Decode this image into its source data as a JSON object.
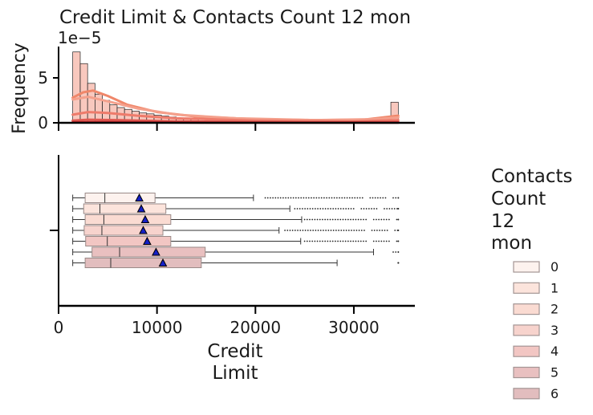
{
  "chart_data": {
    "type": "histogram+boxplot",
    "title": "Credit Limit & Contacts Count 12 mon",
    "histogram": {
      "ylabel": "Frequency",
      "y_scale_label": "1e−5",
      "y_ticks": [
        "0",
        "5"
      ],
      "ylim": [
        0,
        8.5
      ],
      "bins": [
        {
          "x0": 1438,
          "x1": 2200,
          "y": 7.9
        },
        {
          "x0": 2200,
          "x1": 2950,
          "y": 6.6
        },
        {
          "x0": 2950,
          "x1": 3700,
          "y": 4.4
        },
        {
          "x0": 3700,
          "x1": 4450,
          "y": 3.2
        },
        {
          "x0": 4450,
          "x1": 5200,
          "y": 2.5
        },
        {
          "x0": 5200,
          "x1": 5950,
          "y": 2.0
        },
        {
          "x0": 5950,
          "x1": 6700,
          "y": 1.7
        },
        {
          "x0": 6700,
          "x1": 7450,
          "y": 1.5
        },
        {
          "x0": 7450,
          "x1": 8200,
          "y": 1.3
        },
        {
          "x0": 8200,
          "x1": 8950,
          "y": 1.1
        },
        {
          "x0": 8950,
          "x1": 9700,
          "y": 1.0
        },
        {
          "x0": 9700,
          "x1": 10450,
          "y": 0.85
        },
        {
          "x0": 10450,
          "x1": 11200,
          "y": 0.75
        },
        {
          "x0": 11200,
          "x1": 11950,
          "y": 0.65
        },
        {
          "x0": 11950,
          "x1": 12700,
          "y": 0.55
        },
        {
          "x0": 12700,
          "x1": 13450,
          "y": 0.5
        },
        {
          "x0": 13450,
          "x1": 14200,
          "y": 0.45
        },
        {
          "x0": 33760,
          "x1": 34516,
          "y": 2.3
        }
      ],
      "kde_curves": [
        {
          "color": "#f0876a",
          "points": [
            [
              1438,
              2.8
            ],
            [
              2500,
              3.4
            ],
            [
              3500,
              3.6
            ],
            [
              5000,
              3.0
            ],
            [
              7000,
              2.0
            ],
            [
              10000,
              1.2
            ],
            [
              14000,
              0.7
            ],
            [
              20000,
              0.4
            ],
            [
              26000,
              0.3
            ],
            [
              31000,
              0.35
            ],
            [
              33000,
              0.6
            ],
            [
              34516,
              0.8
            ]
          ]
        },
        {
          "color": "#f4a08c",
          "points": [
            [
              1438,
              2.6
            ],
            [
              3000,
              2.9
            ],
            [
              5000,
              2.4
            ],
            [
              8000,
              1.6
            ],
            [
              12000,
              0.9
            ],
            [
              18000,
              0.5
            ],
            [
              26000,
              0.3
            ],
            [
              32000,
              0.4
            ],
            [
              34516,
              0.6
            ]
          ]
        },
        {
          "color": "#ee7b6b",
          "points": [
            [
              1438,
              0.9
            ],
            [
              3000,
              1.2
            ],
            [
              5000,
              1.1
            ],
            [
              8000,
              0.8
            ],
            [
              12000,
              0.5
            ],
            [
              20000,
              0.25
            ],
            [
              30000,
              0.15
            ],
            [
              34516,
              0.3
            ]
          ]
        },
        {
          "color": "#e05a52",
          "points": [
            [
              1438,
              0.25
            ],
            [
              3000,
              0.35
            ],
            [
              6000,
              0.3
            ],
            [
              12000,
              0.15
            ],
            [
              25000,
              0.05
            ],
            [
              34516,
              0.1
            ]
          ]
        },
        {
          "color": "#c0282d",
          "points": [
            [
              1438,
              0.05
            ],
            [
              5000,
              0.08
            ],
            [
              15000,
              0.03
            ],
            [
              34516,
              0.02
            ]
          ]
        }
      ]
    },
    "boxplot": {
      "xlabel": "Credit\nLimit",
      "xlabel_lines": [
        "Credit",
        "Limit"
      ],
      "x_ticks": [
        "0",
        "10000",
        "20000",
        "30000"
      ],
      "xlim": [
        0,
        36200
      ],
      "groups": [
        {
          "name": "0",
          "color": "#fdf2ee",
          "whislo": 1438,
          "q1": 2700,
          "med": 4700,
          "q3": 9800,
          "whishi": 19800,
          "mean": 8200,
          "outliers_from": 21000
        },
        {
          "name": "1",
          "color": "#fce4dc",
          "whislo": 1438,
          "q1": 2550,
          "med": 4200,
          "q3": 10900,
          "whishi": 23500,
          "mean": 8400,
          "outliers_from": 24000
        },
        {
          "name": "2",
          "color": "#fadbd2",
          "whislo": 1438,
          "q1": 2700,
          "med": 4600,
          "q3": 11400,
          "whishi": 24700,
          "mean": 8800,
          "outliers_from": 25000
        },
        {
          "name": "3",
          "color": "#f7d3cd",
          "whislo": 1438,
          "q1": 2600,
          "med": 4400,
          "q3": 10600,
          "whishi": 22400,
          "mean": 8600,
          "outliers_from": 23000
        },
        {
          "name": "4",
          "color": "#f2c6c3",
          "whislo": 1438,
          "q1": 2750,
          "med": 4950,
          "q3": 11400,
          "whishi": 24600,
          "mean": 9000,
          "outliers_from": 25000
        },
        {
          "name": "5",
          "color": "#e9c0c0",
          "whislo": 1438,
          "q1": 3400,
          "med": 6200,
          "q3": 14900,
          "whishi": 32000,
          "mean": 9900,
          "outliers_from": 34000
        },
        {
          "name": "6",
          "color": "#e2bdbe",
          "whislo": 1438,
          "q1": 2700,
          "med": 5300,
          "q3": 14500,
          "whishi": 28300,
          "mean": 10600,
          "outliers_from": 34516
        }
      ]
    },
    "legend": {
      "title_lines": [
        "Contacts",
        "Count",
        "12",
        "mon"
      ],
      "placement": "right",
      "entries": [
        "0",
        "1",
        "2",
        "3",
        "4",
        "5",
        "6"
      ]
    }
  }
}
